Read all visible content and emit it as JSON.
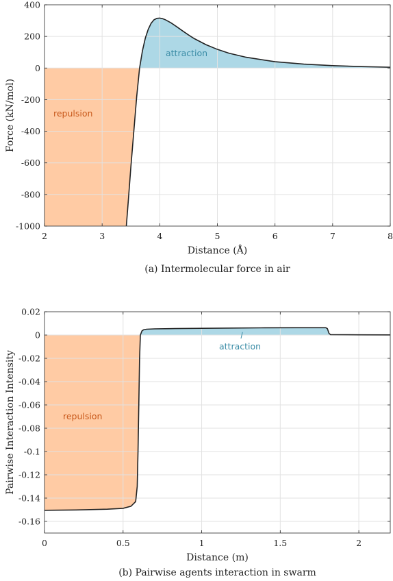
{
  "colors": {
    "repulsion": "#ffcba4",
    "attraction": "#add8e6",
    "repulsion_text": "#c8581a",
    "attraction_text": "#3a8ca6",
    "curve": "#222222",
    "grid": "#e2e2e2"
  },
  "chart_data": [
    {
      "type": "area",
      "caption": "(a) Intermolecular force in air",
      "xlabel": "Distance (Å)",
      "ylabel": "Force (kN/mol)",
      "xlim": [
        2,
        8
      ],
      "ylim": [
        -1000,
        400
      ],
      "xticks": [
        2,
        3,
        4,
        5,
        6,
        7,
        8
      ],
      "yticks": [
        -1000,
        -800,
        -600,
        -400,
        -200,
        0,
        200,
        400
      ],
      "xtick_labels": [
        "2",
        "3",
        "4",
        "5",
        "6",
        "7",
        "8"
      ],
      "ytick_labels": [
        "-1000",
        "-800",
        "-600",
        "-400",
        "-200",
        "0",
        "200",
        "400"
      ],
      "grid": true,
      "series": [
        {
          "x": [
            3.42,
            3.45,
            3.5,
            3.55,
            3.6,
            3.65,
            3.7,
            3.75,
            3.8,
            3.85,
            3.9,
            3.95,
            4.0,
            4.05,
            4.1,
            4.2,
            4.3,
            4.4,
            4.5,
            4.6,
            4.8,
            5.0,
            5.2,
            5.5,
            6.0,
            6.5,
            7.0,
            7.5,
            8.0
          ],
          "y": [
            -1000,
            -860,
            -620,
            -400,
            -180,
            0,
            110,
            190,
            245,
            283,
            305,
            314,
            316,
            312,
            305,
            285,
            260,
            234,
            209,
            186,
            148,
            118,
            94,
            68,
            40,
            25,
            15,
            9,
            5
          ]
        }
      ],
      "annotations": [
        {
          "text": "repulsion",
          "region": "y < 0"
        },
        {
          "text": "attraction",
          "region": "y > 0"
        }
      ]
    },
    {
      "type": "area",
      "caption": "(b) Pairwise agents interaction in swarm",
      "xlabel": "Distance (m)",
      "ylabel": "Pairwise Interaction Intensity",
      "xlim": [
        0,
        2.2
      ],
      "ylim": [
        -0.17,
        0.02
      ],
      "xticks": [
        0,
        0.5,
        1,
        1.5,
        2
      ],
      "yticks": [
        -0.16,
        -0.14,
        -0.12,
        -0.1,
        -0.08,
        -0.06,
        -0.04,
        -0.02,
        0,
        0.02
      ],
      "xtick_labels": [
        "0",
        "0.5",
        "1",
        "1.5",
        "2"
      ],
      "ytick_labels": [
        "-0.16",
        "-0.14",
        "-0.12",
        "-0.1",
        "-0.08",
        "-0.06",
        "-0.04",
        "-0.02",
        "0",
        "0.02"
      ],
      "grid": true,
      "series": [
        {
          "x": [
            0,
            0.2,
            0.4,
            0.5,
            0.55,
            0.58,
            0.59,
            0.595,
            0.6,
            0.605,
            0.61,
            0.62,
            0.63,
            0.65,
            0.7,
            0.8,
            1.0,
            1.2,
            1.4,
            1.6,
            1.79,
            1.8,
            1.81,
            1.82,
            2.0,
            2.2
          ],
          "y": [
            -0.1505,
            -0.1502,
            -0.1495,
            -0.1488,
            -0.147,
            -0.143,
            -0.13,
            -0.1,
            -0.06,
            -0.02,
            0.0,
            0.0035,
            0.0045,
            0.005,
            0.0053,
            0.0055,
            0.0058,
            0.006,
            0.0062,
            0.0063,
            0.0063,
            0.0055,
            0.0015,
            0.0003,
            0.0002,
            0.0001
          ]
        }
      ],
      "annotations": [
        {
          "text": "repulsion",
          "region": "y < 0"
        },
        {
          "text": "attraction",
          "region": "y > 0"
        }
      ]
    }
  ]
}
